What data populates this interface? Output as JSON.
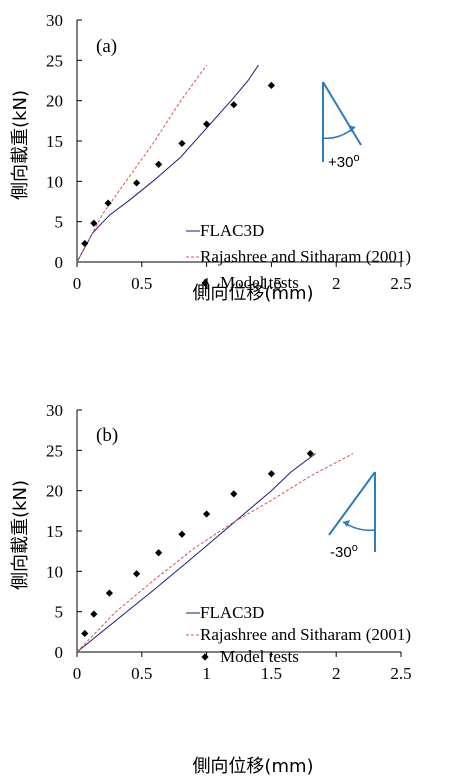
{
  "chart_data": [
    {
      "type": "line",
      "panel_label": "(a)",
      "xlabel": "側向位移(mm)",
      "ylabel": "側向載重(kN)",
      "xlim": [
        0,
        2.5
      ],
      "ylim": [
        0,
        30
      ],
      "xticks": [
        "0",
        "0.5",
        "1",
        "1.5",
        "2",
        "2.5"
      ],
      "yticks": [
        "0",
        "5",
        "10",
        "15",
        "20",
        "25",
        "30"
      ],
      "grid": false,
      "legend_position": "center-right",
      "angle_label": "+30",
      "angle_unit": "o",
      "series": [
        {
          "name": "FLAC3D",
          "style": "solid",
          "color": "#1c1c7c",
          "points": [
            [
              0,
              0
            ],
            [
              0.12,
              3.6
            ],
            [
              0.25,
              5.8
            ],
            [
              0.4,
              7.6
            ],
            [
              0.6,
              10.2
            ],
            [
              0.8,
              13.0
            ],
            [
              1.0,
              16.6
            ],
            [
              1.2,
              20.2
            ],
            [
              1.32,
              22.5
            ],
            [
              1.4,
              24.4
            ]
          ]
        },
        {
          "name": "Rajashree and Sitharam (2001)",
          "style": "dashed",
          "color": "#d9534f",
          "points": [
            [
              0,
              0
            ],
            [
              0.2,
              6.0
            ],
            [
              0.4,
              10.5
            ],
            [
              0.6,
              15.0
            ],
            [
              0.8,
              20.0
            ],
            [
              1.0,
              24.4
            ]
          ]
        },
        {
          "name": "Model tests",
          "style": "marker",
          "color": "#000000",
          "points": [
            [
              0.06,
              2.3
            ],
            [
              0.13,
              4.8
            ],
            [
              0.24,
              7.3
            ],
            [
              0.46,
              9.8
            ],
            [
              0.63,
              12.1
            ],
            [
              0.81,
              14.7
            ],
            [
              1.0,
              17.1
            ],
            [
              1.21,
              19.5
            ],
            [
              1.5,
              21.9
            ]
          ]
        }
      ]
    },
    {
      "type": "line",
      "panel_label": "(b)",
      "xlabel": "側向位移(mm)",
      "ylabel": "側向載重(kN)",
      "xlim": [
        0,
        2.5
      ],
      "ylim": [
        0,
        30
      ],
      "xticks": [
        "0",
        "0.5",
        "1",
        "1.5",
        "2",
        "2.5"
      ],
      "yticks": [
        "0",
        "5",
        "10",
        "15",
        "20",
        "25",
        "30"
      ],
      "grid": false,
      "legend_position": "bottom-right",
      "angle_label": "-30",
      "angle_unit": "o",
      "series": [
        {
          "name": "FLAC3D",
          "style": "solid",
          "color": "#1c1c7c",
          "points": [
            [
              0,
              0
            ],
            [
              0.3,
              3.9
            ],
            [
              0.6,
              7.8
            ],
            [
              0.9,
              11.8
            ],
            [
              1.2,
              15.9
            ],
            [
              1.5,
              20.0
            ],
            [
              1.65,
              22.3
            ],
            [
              1.84,
              24.6
            ]
          ]
        },
        {
          "name": "Rajashree and Sitharam (2001)",
          "style": "dashed",
          "color": "#d9534f",
          "points": [
            [
              0,
              0
            ],
            [
              0.3,
              5.0
            ],
            [
              0.6,
              9.0
            ],
            [
              0.9,
              12.8
            ],
            [
              1.2,
              16.0
            ],
            [
              1.5,
              18.8
            ],
            [
              1.8,
              21.8
            ],
            [
              2.13,
              24.6
            ]
          ]
        },
        {
          "name": "Model tests",
          "style": "marker",
          "color": "#000000",
          "points": [
            [
              0.06,
              2.3
            ],
            [
              0.13,
              4.7
            ],
            [
              0.25,
              7.3
            ],
            [
              0.46,
              9.7
            ],
            [
              0.63,
              12.3
            ],
            [
              0.81,
              14.6
            ],
            [
              1.0,
              17.1
            ],
            [
              1.21,
              19.6
            ],
            [
              1.5,
              22.1
            ],
            [
              1.8,
              24.6
            ]
          ]
        }
      ]
    }
  ]
}
